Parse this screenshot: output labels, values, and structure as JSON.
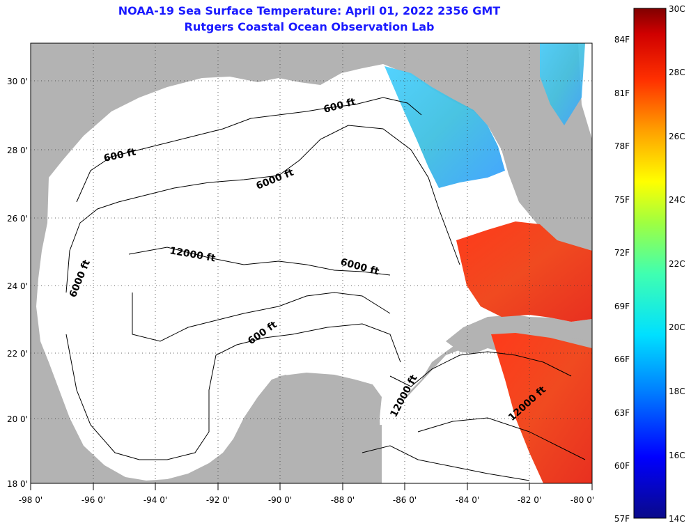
{
  "header": {
    "title": "NOAA-19 Sea Surface Temperature:  April 01, 2022 2356 GMT",
    "subtitle": "Rutgers Coastal Ocean Observation Lab"
  },
  "map": {
    "lon_range": [
      -98,
      -80
    ],
    "lat_range": [
      18,
      31
    ],
    "lon_ticks": [
      "-98 0'",
      "-96 0'",
      "-94 0'",
      "-92 0'",
      "-90 0'",
      "-88 0'",
      "-86 0'",
      "-84 0'",
      "-82 0'",
      "-80 0'"
    ],
    "lat_ticks": [
      "18 0'",
      "20 0'",
      "22 0'",
      "24 0'",
      "26 0'",
      "28 0'",
      "30 0'"
    ],
    "contour_labels": [
      "600 ft",
      "600 ft",
      "6000 ft",
      "12000 ft",
      "6000 ft",
      "6000 ft",
      "600 ft",
      "12000 ft",
      "12000 ft"
    ],
    "land_color": "#b3b3b3",
    "water_nodata_color": "#ffffff"
  },
  "colorbar": {
    "celsius_labels": [
      "30C",
      "28C",
      "26C",
      "24C",
      "22C",
      "20C",
      "18C",
      "16C",
      "14C"
    ],
    "fahrenheit_labels": [
      "84F",
      "81F",
      "78F",
      "75F",
      "72F",
      "69F",
      "66F",
      "63F",
      "60F",
      "57F"
    ],
    "range_c": [
      14,
      30
    ]
  }
}
